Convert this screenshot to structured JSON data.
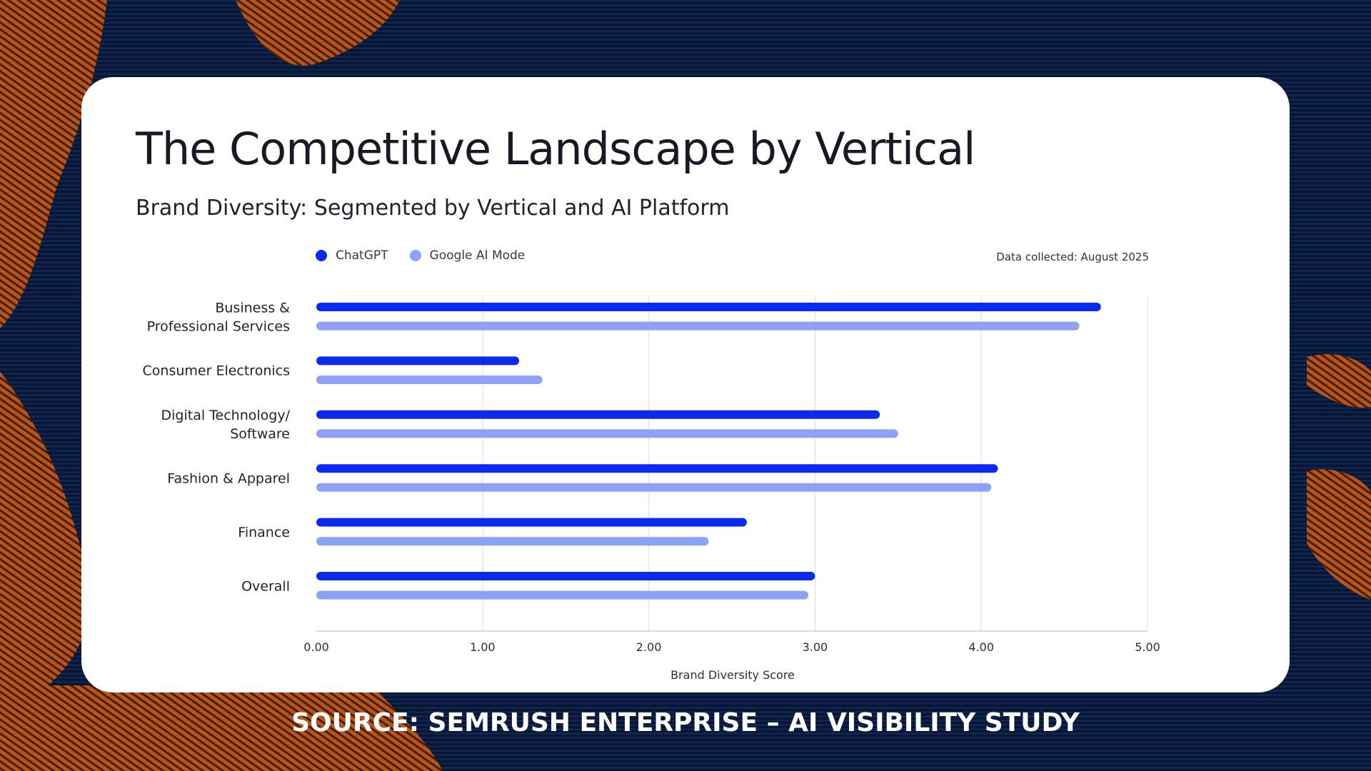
{
  "colors": {
    "chatgpt": "#0a2bef",
    "google": "#8da1f6",
    "grid": "#dcdcdc",
    "bg": "#0c1a3a",
    "accent": "#c8631e"
  },
  "page": {
    "title": "The Competitive Landscape by Vertical",
    "subtitle": "Brand Diversity: Segmented by Vertical and AI Platform",
    "data_note": "Data collected: August 2025",
    "source": "SOURCE: SEMRUSH ENTERPRISE – AI VISIBILITY STUDY"
  },
  "chart_data": {
    "type": "bar",
    "orientation": "horizontal",
    "categories": [
      [
        "Business &",
        "Professional Services"
      ],
      [
        "Consumer Electronics"
      ],
      [
        "Digital Technology/",
        "Software"
      ],
      [
        "Fashion & Apparel"
      ],
      [
        "Finance"
      ],
      [
        "Overall"
      ]
    ],
    "series": [
      {
        "name": "ChatGPT",
        "color": "#0a2bef",
        "values": [
          4.72,
          1.22,
          3.39,
          4.1,
          2.59,
          3.0
        ]
      },
      {
        "name": "Google AI Mode",
        "color": "#8da1f6",
        "values": [
          4.59,
          1.36,
          3.5,
          4.06,
          2.36,
          2.96
        ]
      }
    ],
    "xlabel": "Brand Diversity Score",
    "xlim": [
      0,
      5
    ],
    "xticks": [
      "0.00",
      "1.00",
      "2.00",
      "3.00",
      "4.00",
      "5.00"
    ],
    "grid": true,
    "legend_position": "top-left"
  }
}
